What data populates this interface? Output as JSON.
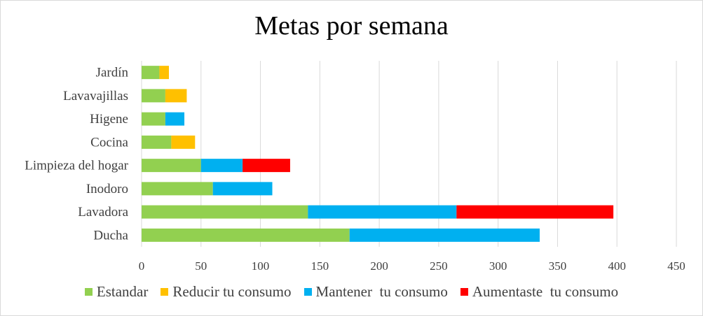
{
  "chart_data": {
    "type": "bar",
    "orientation": "horizontal",
    "stacked": true,
    "title": "Metas por semana",
    "categories": [
      "Jardín",
      "Lavavajillas",
      "Higene",
      "Cocina",
      "Limpieza del hogar",
      "Inodoro",
      "Lavadora",
      "Ducha"
    ],
    "series": [
      {
        "name": "Estandar",
        "color": "#92d050",
        "values": [
          15,
          20,
          20,
          25,
          50,
          60,
          140,
          175
        ]
      },
      {
        "name": "Reducir tu consumo",
        "color": "#ffc000",
        "values": [
          8,
          18,
          0,
          20,
          0,
          0,
          0,
          0
        ]
      },
      {
        "name": "Mantener  tu consumo",
        "color": "#00b0f0",
        "values": [
          0,
          0,
          16,
          0,
          35,
          50,
          125,
          160
        ]
      },
      {
        "name": "Aumentaste  tu consumo",
        "color": "#ff0000",
        "values": [
          0,
          0,
          0,
          0,
          40,
          0,
          132,
          0
        ]
      }
    ],
    "xlim": [
      0,
      450
    ],
    "xticks": [
      "0",
      "50",
      "100",
      "150",
      "200",
      "250",
      "300",
      "350",
      "400",
      "450"
    ],
    "grid": true,
    "legend": "bottom"
  }
}
